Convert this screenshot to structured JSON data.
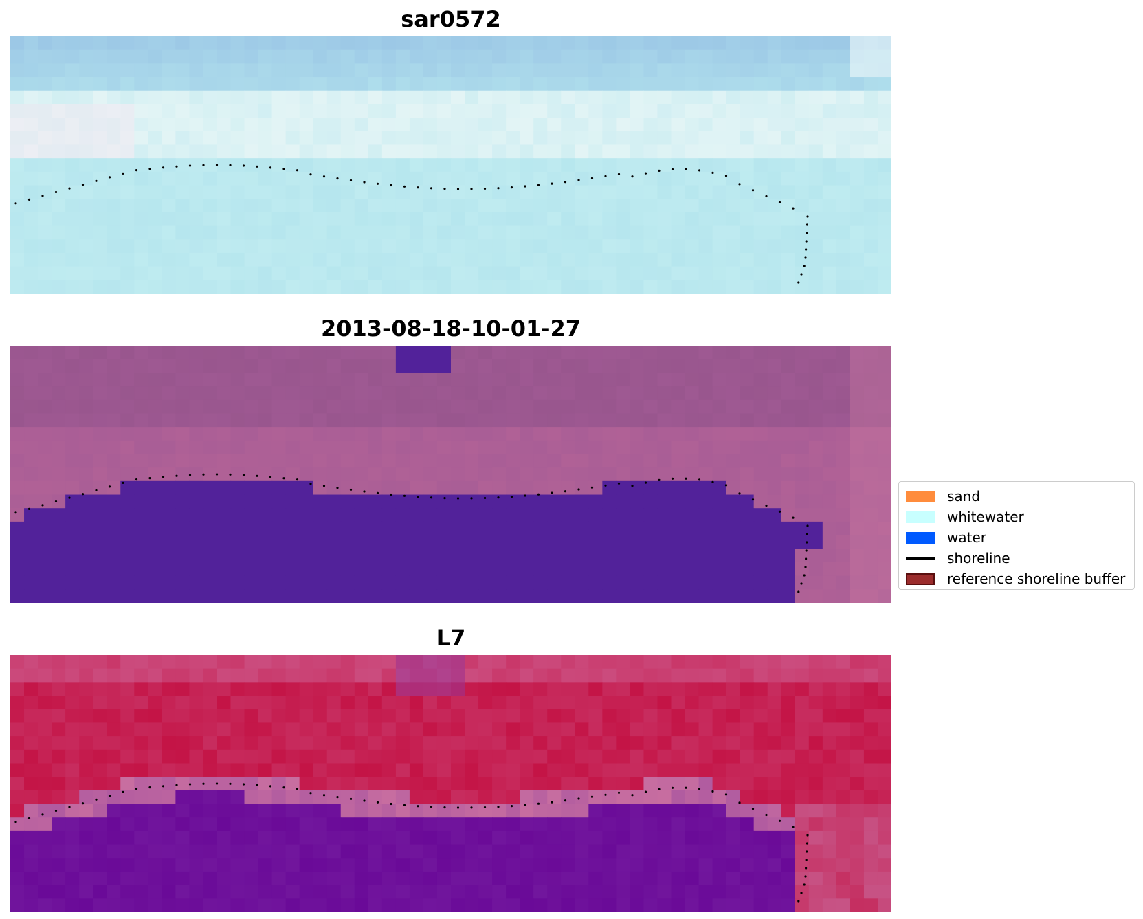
{
  "panels": [
    {
      "title": "sar0572",
      "style": "sar"
    },
    {
      "title": "2013-08-18-10-01-27",
      "style": "classified"
    },
    {
      "title": "L7",
      "style": "ndwi"
    }
  ],
  "legend": {
    "items": [
      {
        "label": "sand",
        "color": "#ff8c3c",
        "kind": "patch"
      },
      {
        "label": "whitewater",
        "color": "#c8ffff",
        "kind": "patch"
      },
      {
        "label": "water",
        "color": "#005aff",
        "kind": "patch"
      },
      {
        "label": "shoreline",
        "color": "#000000",
        "kind": "line"
      },
      {
        "label": "reference shoreline buffer",
        "color": "#9b2c2c",
        "kind": "patch",
        "edge": "#5a0f0f"
      }
    ]
  },
  "colors": {
    "sar_base": "#b6e6ee",
    "sar_sky": "#9cc8e6",
    "classified_background": "#a35b96",
    "classified_water": "#52229a",
    "ndwi_land": "#c41446",
    "ndwi_water": "#6a0a98",
    "shoreline_dots": "#000000"
  }
}
